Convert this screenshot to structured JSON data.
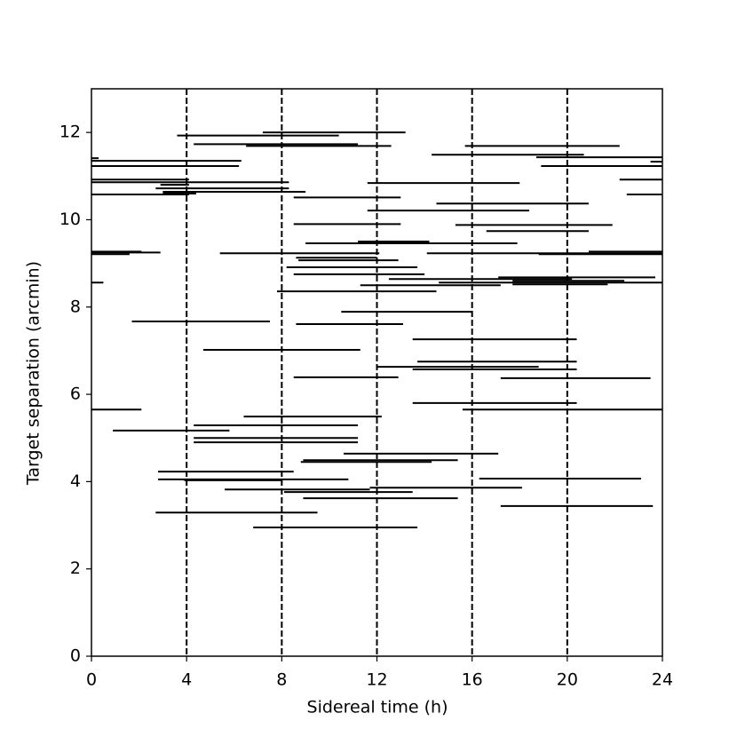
{
  "chart_data": {
    "type": "segment",
    "xlabel": "Sidereal time (h)",
    "ylabel": "Target separation (arcmin)",
    "xlim": [
      0,
      24
    ],
    "ylim": [
      0,
      13
    ],
    "xticks": [
      0,
      4,
      8,
      12,
      16,
      20,
      24
    ],
    "yticks": [
      0,
      2,
      4,
      6,
      8,
      10,
      12
    ],
    "vlines": [
      4,
      8,
      12,
      16,
      20
    ],
    "color": "#000000",
    "start": [
      7.2,
      3.6,
      4.3,
      6.5,
      15.7,
      14.3,
      18.7,
      0,
      0,
      23.5,
      0,
      18.9,
      0,
      22.2,
      0,
      11.6,
      2.9,
      2.7,
      3.0,
      3.0,
      0,
      22.5,
      8.5,
      14.5,
      11.6,
      8.5,
      15.3,
      16.6,
      11.2,
      9.0,
      0,
      20.9,
      0,
      5.4,
      14.1,
      0,
      18.8,
      8.6,
      8.7,
      8.2,
      8.5,
      17.1,
      12.5,
      17.7,
      0,
      14.6,
      17.7,
      11.3,
      7.8,
      10.5,
      1.7,
      8.6,
      13.5,
      4.7,
      13.7,
      12.0,
      13.5,
      8.5,
      17.2,
      13.5,
      0,
      15.6,
      6.4,
      4.3,
      0.9,
      4.3,
      4.3,
      10.6,
      8.9,
      8.8,
      2.8,
      16.3,
      2.8,
      3.9,
      11.7,
      5.6,
      8.1,
      8.9,
      17.2,
      2.7,
      6.8
    ],
    "end": [
      13.2,
      10.4,
      11.2,
      12.6,
      22.2,
      20.7,
      24,
      0.3,
      6.3,
      24,
      6.2,
      24,
      4.1,
      24,
      8.3,
      18.0,
      4.1,
      8.3,
      9.0,
      4.4,
      4.1,
      24,
      13.0,
      20.9,
      18.4,
      13.0,
      21.9,
      20.9,
      14.2,
      17.9,
      2.1,
      24,
      2.9,
      12.1,
      24,
      1.6,
      24,
      12.0,
      12.9,
      13.7,
      14.0,
      23.7,
      20.2,
      22.4,
      0.5,
      24,
      21.7,
      17.2,
      14.5,
      16.0,
      7.5,
      13.1,
      20.4,
      11.3,
      20.4,
      18.8,
      20.4,
      12.9,
      23.5,
      20.4,
      2.1,
      24,
      12.2,
      11.2,
      5.8,
      11.2,
      11.2,
      17.1,
      15.4,
      14.3,
      8.5,
      23.1,
      10.8,
      8.0,
      18.1,
      11.7,
      13.5,
      15.4,
      23.6,
      9.5,
      13.7
    ],
    "values": [
      12,
      11.93,
      11.73,
      11.69,
      11.69,
      11.49,
      11.43,
      11.41,
      11.35,
      11.33,
      11.23,
      11.23,
      10.92,
      10.92,
      10.86,
      10.84,
      10.8,
      10.72,
      10.64,
      10.6,
      10.58,
      10.58,
      10.51,
      10.37,
      10.21,
      9.9,
      9.88,
      9.74,
      9.5,
      9.46,
      9.27,
      9.27,
      9.25,
      9.23,
      9.23,
      9.21,
      9.21,
      9.13,
      9.07,
      8.91,
      8.75,
      8.68,
      8.64,
      8.6,
      8.56,
      8.56,
      8.52,
      8.5,
      8.36,
      7.89,
      7.67,
      7.61,
      7.26,
      7.02,
      6.75,
      6.63,
      6.57,
      6.39,
      6.37,
      5.8,
      5.65,
      5.65,
      5.49,
      5.29,
      5.17,
      5.0,
      4.9,
      4.64,
      4.49,
      4.45,
      4.23,
      4.07,
      4.05,
      4.03,
      3.86,
      3.82,
      3.76,
      3.62,
      3.44,
      3.29,
      2.95
    ]
  }
}
